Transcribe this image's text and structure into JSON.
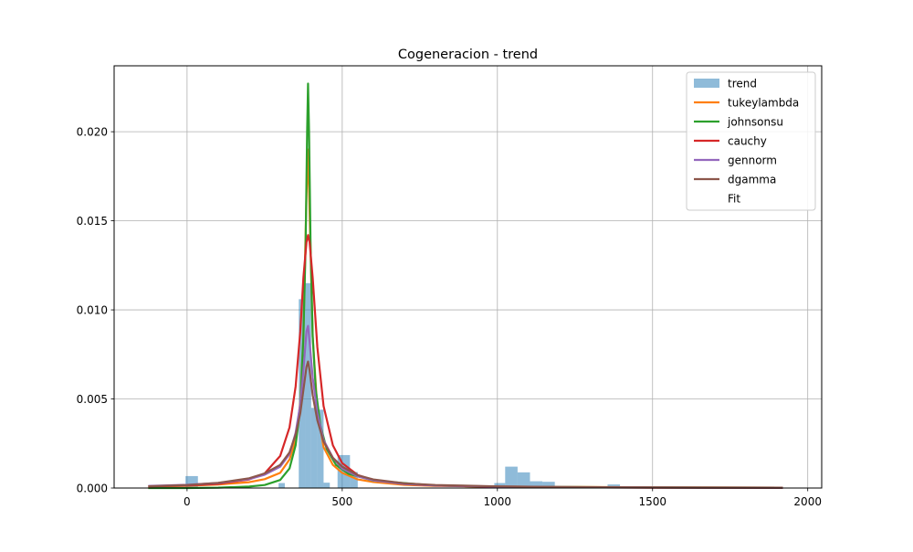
{
  "chart_data": {
    "type": "histogram",
    "title": "Cogeneracion - trend",
    "xlabel": "",
    "ylabel": "",
    "xlim": [
      -235,
      2045
    ],
    "ylim": [
      0,
      0.0237
    ],
    "xticks": [
      0,
      500,
      1000,
      1500,
      2000
    ],
    "xtick_labels": [
      "0",
      "500",
      "1000",
      "1500",
      "2000"
    ],
    "yticks": [
      0,
      0.005,
      0.01,
      0.015,
      0.02
    ],
    "ytick_labels": [
      "0.000",
      "0.005",
      "0.010",
      "0.015",
      "0.020"
    ],
    "grid": true,
    "legend_position": "top-right",
    "histogram": {
      "name": "trend",
      "color": "#1f77b4",
      "alpha": 0.5,
      "bins": [
        {
          "x0": -5,
          "x1": 35,
          "value": 0.00067
        },
        {
          "x0": 295,
          "x1": 315,
          "value": 0.00028
        },
        {
          "x0": 360,
          "x1": 380,
          "value": 0.0106
        },
        {
          "x0": 380,
          "x1": 400,
          "value": 0.0115
        },
        {
          "x0": 400,
          "x1": 420,
          "value": 0.0045
        },
        {
          "x0": 420,
          "x1": 440,
          "value": 0.0044
        },
        {
          "x0": 440,
          "x1": 460,
          "value": 0.0003
        },
        {
          "x0": 485,
          "x1": 525,
          "value": 0.00185
        },
        {
          "x0": 525,
          "x1": 550,
          "value": 0.0009
        },
        {
          "x0": 990,
          "x1": 1025,
          "value": 0.00028
        },
        {
          "x0": 1025,
          "x1": 1065,
          "value": 0.0012
        },
        {
          "x0": 1065,
          "x1": 1105,
          "value": 0.00088
        },
        {
          "x0": 1105,
          "x1": 1145,
          "value": 0.00038
        },
        {
          "x0": 1145,
          "x1": 1185,
          "value": 0.00035
        },
        {
          "x0": 1355,
          "x1": 1395,
          "value": 0.0002
        }
      ]
    },
    "series": [
      {
        "name": "tukeylambda",
        "color": "#ff7f0e",
        "x": [
          -125,
          0,
          100,
          200,
          250,
          300,
          330,
          350,
          365,
          375,
          385,
          390,
          395,
          405,
          420,
          440,
          470,
          500,
          550,
          600,
          700,
          800,
          1000,
          1200,
          1500,
          1920
        ],
        "y": [
          8e-05,
          0.00013,
          0.0002,
          0.00033,
          0.0005,
          0.00085,
          0.0016,
          0.0027,
          0.0048,
          0.0085,
          0.0165,
          0.019,
          0.0155,
          0.0085,
          0.0044,
          0.0023,
          0.0013,
          0.00085,
          0.00048,
          0.00034,
          0.00018,
          0.00012,
          8e-05,
          6e-05,
          4e-05,
          2e-05
        ]
      },
      {
        "name": "johnsonsu",
        "color": "#2ca02c",
        "x": [
          -125,
          0,
          100,
          200,
          250,
          300,
          330,
          350,
          365,
          375,
          382,
          387,
          390,
          393,
          398,
          405,
          415,
          430,
          450,
          480,
          520,
          600,
          800,
          1000,
          1500,
          1920
        ],
        "y": [
          0.0,
          0.0,
          2e-05,
          8e-05,
          0.00017,
          0.00045,
          0.0011,
          0.0024,
          0.0045,
          0.0085,
          0.0135,
          0.02,
          0.0227,
          0.02,
          0.0135,
          0.0085,
          0.0055,
          0.0035,
          0.0022,
          0.0013,
          0.0008,
          0.00042,
          0.00014,
          7e-05,
          3e-05,
          2e-05
        ]
      },
      {
        "name": "cauchy",
        "color": "#d62728",
        "x": [
          -125,
          0,
          100,
          200,
          250,
          300,
          330,
          350,
          365,
          375,
          385,
          390,
          395,
          405,
          420,
          440,
          470,
          500,
          550,
          600,
          700,
          800,
          1000,
          1200,
          1500,
          1920
        ],
        "y": [
          9e-05,
          0.00014,
          0.00023,
          0.00048,
          0.00082,
          0.0018,
          0.0034,
          0.0057,
          0.0088,
          0.0118,
          0.0138,
          0.0142,
          0.0138,
          0.0118,
          0.0079,
          0.0046,
          0.0024,
          0.0014,
          0.00073,
          0.00045,
          0.00022,
          0.00014,
          7e-05,
          4e-05,
          2e-05,
          1e-05
        ]
      },
      {
        "name": "gennorm",
        "color": "#9467bd",
        "x": [
          -125,
          0,
          100,
          200,
          250,
          300,
          330,
          350,
          365,
          375,
          385,
          390,
          395,
          405,
          420,
          440,
          470,
          500,
          550,
          600,
          700,
          800,
          1000,
          1200,
          1500,
          1920
        ],
        "y": [
          0.00012,
          0.00018,
          0.00028,
          0.0005,
          0.00075,
          0.0012,
          0.0019,
          0.0031,
          0.0047,
          0.0066,
          0.0088,
          0.0091,
          0.0082,
          0.0062,
          0.0042,
          0.0027,
          0.0017,
          0.0011,
          0.00065,
          0.00043,
          0.00023,
          0.00015,
          8e-05,
          5e-05,
          3e-05,
          2e-05
        ]
      },
      {
        "name": "dgamma",
        "color": "#8c564b",
        "x": [
          -125,
          0,
          100,
          200,
          250,
          300,
          330,
          350,
          365,
          375,
          385,
          390,
          395,
          405,
          420,
          440,
          470,
          500,
          550,
          600,
          700,
          800,
          1000,
          1200,
          1500,
          1920
        ],
        "y": [
          0.0001,
          0.00017,
          0.00029,
          0.00055,
          0.00082,
          0.0013,
          0.002,
          0.003,
          0.0042,
          0.0055,
          0.0068,
          0.0071,
          0.0066,
          0.0052,
          0.0038,
          0.0026,
          0.0017,
          0.0012,
          0.00072,
          0.00048,
          0.00026,
          0.00017,
          9e-05,
          6e-05,
          3e-05,
          2e-05
        ]
      }
    ],
    "legend": [
      "trend",
      "tukeylambda",
      "johnsonsu",
      "cauchy",
      "gennorm",
      "dgamma",
      "Fit"
    ]
  }
}
